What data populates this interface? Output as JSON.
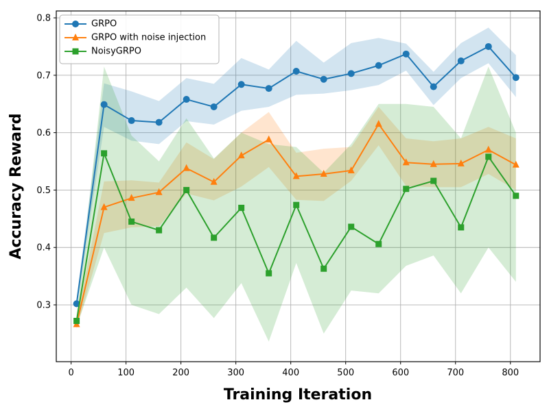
{
  "figure": {
    "background": "#ffffff",
    "grid_color": "#b0b0b0",
    "spine_color": "#000000"
  },
  "axes": {
    "x_label": "Training Iteration",
    "y_label": "Accuracy Reward",
    "xlim": [
      -27,
      854
    ],
    "ylim": [
      0.201,
      0.812
    ],
    "x_ticks": [
      0,
      100,
      200,
      300,
      400,
      500,
      600,
      700,
      800
    ],
    "x_tick_labels": [
      "0",
      "100",
      "200",
      "300",
      "400",
      "500",
      "600",
      "700",
      "800"
    ],
    "y_ticks": [
      0.3,
      0.4,
      0.5,
      0.6,
      0.7,
      0.8
    ],
    "y_tick_labels": [
      "0.3",
      "0.4",
      "0.5",
      "0.6",
      "0.7",
      "0.8"
    ],
    "grid": true
  },
  "legend": {
    "position": "upper-left"
  },
  "chart_data": {
    "type": "line",
    "title": "",
    "xlabel": "Training Iteration",
    "ylabel": "Accuracy Reward",
    "grid": true,
    "band_alpha": 0.2,
    "x": [
      10,
      60,
      110,
      160,
      210,
      260,
      310,
      360,
      410,
      460,
      510,
      560,
      610,
      660,
      710,
      760,
      810
    ],
    "series": [
      {
        "name": "GRPO",
        "color": "#1f77b4",
        "marker": "circle",
        "values": [
          0.302,
          0.649,
          0.621,
          0.618,
          0.658,
          0.645,
          0.684,
          0.677,
          0.707,
          0.693,
          0.703,
          0.717,
          0.737,
          0.68,
          0.725,
          0.75,
          0.696
        ],
        "band_upper": [
          0.311,
          0.686,
          0.672,
          0.655,
          0.695,
          0.685,
          0.73,
          0.71,
          0.76,
          0.722,
          0.756,
          0.765,
          0.755,
          0.706,
          0.756,
          0.783,
          0.735
        ],
        "band_lower": [
          0.293,
          0.61,
          0.586,
          0.58,
          0.62,
          0.614,
          0.638,
          0.645,
          0.666,
          0.668,
          0.674,
          0.683,
          0.708,
          0.648,
          0.695,
          0.721,
          0.662
        ]
      },
      {
        "name": "GRPO with noise injection",
        "color": "#ff7f0e",
        "marker": "triangle",
        "values": [
          0.266,
          0.47,
          0.486,
          0.496,
          0.538,
          0.514,
          0.56,
          0.588,
          0.524,
          0.528,
          0.534,
          0.615,
          0.548,
          0.545,
          0.546,
          0.57,
          0.544
        ],
        "band_upper": [
          0.274,
          0.515,
          0.517,
          0.513,
          0.583,
          0.554,
          0.6,
          0.636,
          0.565,
          0.572,
          0.575,
          0.645,
          0.59,
          0.585,
          0.59,
          0.61,
          0.59
        ],
        "band_lower": [
          0.258,
          0.425,
          0.435,
          0.437,
          0.494,
          0.482,
          0.506,
          0.54,
          0.483,
          0.481,
          0.516,
          0.578,
          0.507,
          0.505,
          0.505,
          0.528,
          0.5
        ]
      },
      {
        "name": "NoisyGRPO",
        "color": "#2ca02c",
        "marker": "square",
        "values": [
          0.272,
          0.564,
          0.445,
          0.43,
          0.5,
          0.417,
          0.469,
          0.355,
          0.474,
          0.363,
          0.436,
          0.406,
          0.502,
          0.516,
          0.435,
          0.558,
          0.49
        ],
        "band_upper": [
          0.282,
          0.715,
          0.595,
          0.55,
          0.625,
          0.555,
          0.6,
          0.58,
          0.575,
          0.53,
          0.58,
          0.65,
          0.65,
          0.645,
          0.59,
          0.715,
          0.6
        ],
        "band_lower": [
          0.262,
          0.4,
          0.3,
          0.284,
          0.33,
          0.277,
          0.338,
          0.236,
          0.373,
          0.25,
          0.325,
          0.32,
          0.368,
          0.386,
          0.32,
          0.4,
          0.34
        ]
      }
    ]
  }
}
